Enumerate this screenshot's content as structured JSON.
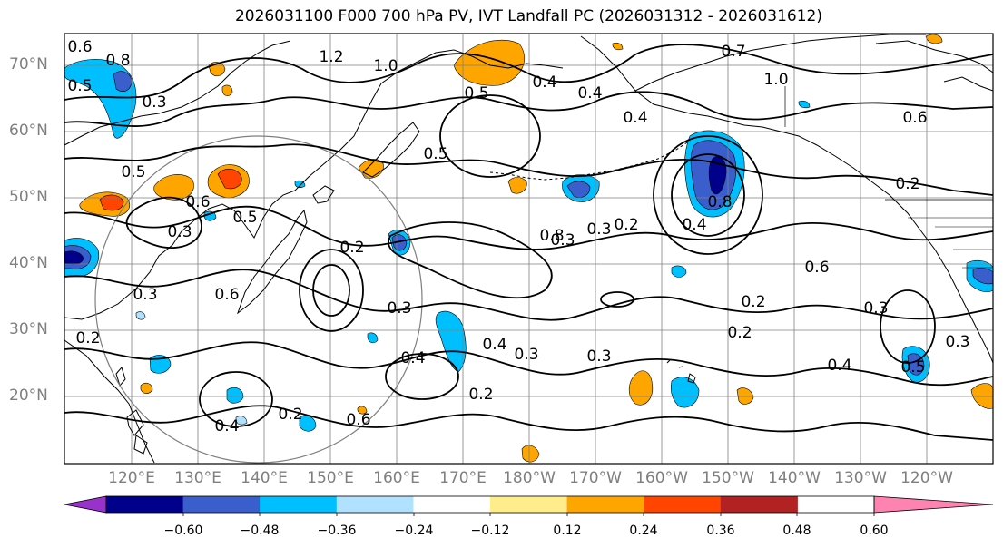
{
  "title": "2026031100 F000 700 hPa PV, IVT Landfall PC (2026031312 - 2026031612)",
  "lat_labels": [
    "70°N",
    "60°N",
    "50°N",
    "40°N",
    "30°N",
    "20°N"
  ],
  "lon_labels": [
    "120°E",
    "130°E",
    "140°E",
    "150°E",
    "160°E",
    "170°E",
    "180°W",
    "170°W",
    "160°W",
    "150°W",
    "140°W",
    "130°W",
    "120°W"
  ],
  "colorbar": {
    "colors": [
      "#9932cc",
      "#00008b",
      "#3a5fcd",
      "#00bfff",
      "#b0e2ff",
      "#ffffff",
      "#ffec8b",
      "#ffa500",
      "#ff4500",
      "#b22222",
      "#ff83b1"
    ],
    "tick_labels": [
      "−0.60",
      "−0.48",
      "−0.36",
      "−0.24",
      "−0.12",
      "0.12",
      "0.24",
      "0.36",
      "0.48",
      "0.60"
    ]
  },
  "contour_labels": [
    "0.6",
    "0.8",
    "0.5",
    "0.3",
    "1.2",
    "1.0",
    "0.5",
    "0.4",
    "0.4",
    "0.7",
    "1.0",
    "0.6",
    "0.2",
    "0.8",
    "0.4",
    "0.5",
    "0.5",
    "0.3",
    "0.6",
    "0.5",
    "0.3",
    "0.2",
    "0.3",
    "0.4",
    "0.8",
    "0.3",
    "0.3",
    "0.2",
    "0.4",
    "0.2",
    "0.6",
    "0.3",
    "0.4",
    "0.3",
    "0.5",
    "0.2",
    "0.3",
    "0.3",
    "0.2",
    "0.4",
    "0.6",
    "0.6",
    "0.2",
    "0.2",
    "0.4"
  ]
}
